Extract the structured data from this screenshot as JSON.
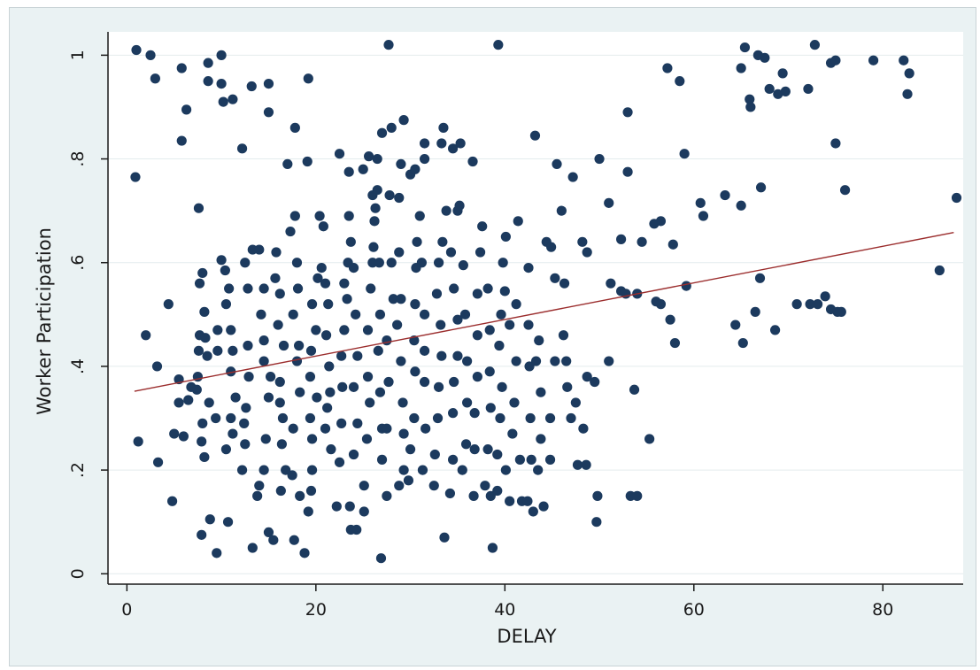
{
  "chart_data": {
    "type": "scatter",
    "xlabel": "DELAY",
    "ylabel": "Worker Participation",
    "xlim": [
      -2,
      88.5
    ],
    "ylim": [
      -0.02,
      1.045
    ],
    "xticks": [
      0,
      20,
      40,
      60,
      80
    ],
    "xtick_labels": [
      "0",
      "20",
      "40",
      "60",
      "80"
    ],
    "yticks": [
      0,
      0.2,
      0.4,
      0.6,
      0.8,
      1
    ],
    "ytick_labels": [
      "0",
      ".2",
      ".4",
      ".6",
      ".8",
      "1"
    ],
    "grid": true,
    "colors": {
      "background": "#eaf2f3",
      "plot_area": "#ffffff",
      "gridline": "#e4eced",
      "marker": "#1c3a5e",
      "fit_line": "#9b2d2d",
      "axis": "#1a1a1a"
    },
    "fit_line": {
      "x": [
        0.8,
        87.5
      ],
      "y": [
        0.352,
        0.658
      ]
    },
    "points": [
      [
        1,
        1.01
      ],
      [
        2.5,
        1.0
      ],
      [
        3,
        0.955
      ],
      [
        5.8,
        0.975
      ],
      [
        6.3,
        0.895
      ],
      [
        5.8,
        0.835
      ],
      [
        8.6,
        0.985
      ],
      [
        10,
        1.0
      ],
      [
        8.6,
        0.95
      ],
      [
        10,
        0.945
      ],
      [
        10.2,
        0.91
      ],
      [
        11.2,
        0.915
      ],
      [
        13.2,
        0.94
      ],
      [
        15,
        0.945
      ],
      [
        15,
        0.89
      ],
      [
        12.2,
        0.82
      ],
      [
        17.8,
        0.86
      ],
      [
        19.2,
        0.955
      ],
      [
        19.1,
        0.795
      ],
      [
        17,
        0.79
      ],
      [
        27.7,
        1.02
      ],
      [
        39.3,
        1.02
      ],
      [
        0.9,
        0.765
      ],
      [
        7.6,
        0.705
      ],
      [
        22.5,
        0.81
      ],
      [
        23.5,
        0.775
      ],
      [
        25.6,
        0.805
      ],
      [
        26.5,
        0.8
      ],
      [
        25,
        0.78
      ],
      [
        27,
        0.85
      ],
      [
        28,
        0.86
      ],
      [
        29.3,
        0.875
      ],
      [
        29,
        0.79
      ],
      [
        30,
        0.77
      ],
      [
        30.5,
        0.78
      ],
      [
        31.5,
        0.8
      ],
      [
        31.5,
        0.83
      ],
      [
        33.5,
        0.86
      ],
      [
        33.3,
        0.83
      ],
      [
        34.5,
        0.82
      ],
      [
        35.3,
        0.83
      ],
      [
        36.6,
        0.795
      ],
      [
        26.5,
        0.74
      ],
      [
        27.8,
        0.73
      ],
      [
        26,
        0.73
      ],
      [
        26.3,
        0.705
      ],
      [
        28.8,
        0.725
      ],
      [
        43.2,
        0.845
      ],
      [
        45.5,
        0.79
      ],
      [
        47.2,
        0.765
      ],
      [
        46,
        0.7
      ],
      [
        51,
        0.715
      ],
      [
        53,
        0.775
      ],
      [
        53,
        0.89
      ],
      [
        57.2,
        0.975
      ],
      [
        58.5,
        0.95
      ],
      [
        59,
        0.81
      ],
      [
        60.7,
        0.715
      ],
      [
        61,
        0.69
      ],
      [
        63.3,
        0.73
      ],
      [
        65,
        0.71
      ],
      [
        65,
        0.975
      ],
      [
        65.4,
        1.015
      ],
      [
        65.9,
        0.915
      ],
      [
        66,
        0.9
      ],
      [
        66.8,
        1.0
      ],
      [
        67.5,
        0.995
      ],
      [
        68,
        0.935
      ],
      [
        68.9,
        0.925
      ],
      [
        69.4,
        0.965
      ],
      [
        69.7,
        0.93
      ],
      [
        72.1,
        0.935
      ],
      [
        72.8,
        1.02
      ],
      [
        74.5,
        0.985
      ],
      [
        75,
        0.99
      ],
      [
        75,
        0.83
      ],
      [
        76,
        0.74
      ],
      [
        67.1,
        0.745
      ],
      [
        79,
        0.99
      ],
      [
        82.2,
        0.99
      ],
      [
        82.8,
        0.965
      ],
      [
        82.6,
        0.925
      ],
      [
        87.8,
        0.725
      ],
      [
        55.8,
        0.675
      ],
      [
        56.5,
        0.68
      ],
      [
        57.8,
        0.635
      ],
      [
        54.5,
        0.64
      ],
      [
        52.3,
        0.645
      ],
      [
        48.2,
        0.64
      ],
      [
        48.7,
        0.62
      ],
      [
        44.4,
        0.64
      ],
      [
        44.9,
        0.63
      ],
      [
        50,
        0.8
      ],
      [
        56,
        0.525
      ],
      [
        56.5,
        0.52
      ],
      [
        57.5,
        0.49
      ],
      [
        58,
        0.445
      ],
      [
        59.2,
        0.555
      ],
      [
        52.3,
        0.545
      ],
      [
        54,
        0.54
      ],
      [
        55.3,
        0.26
      ],
      [
        53.3,
        0.15
      ],
      [
        54,
        0.15
      ],
      [
        53.7,
        0.355
      ],
      [
        64.4,
        0.48
      ],
      [
        65.2,
        0.445
      ],
      [
        66.5,
        0.505
      ],
      [
        67,
        0.57
      ],
      [
        68.6,
        0.47
      ],
      [
        70.9,
        0.52
      ],
      [
        72.3,
        0.52
      ],
      [
        73.1,
        0.52
      ],
      [
        73.9,
        0.535
      ],
      [
        74.5,
        0.51
      ],
      [
        75.2,
        0.505
      ],
      [
        75.6,
        0.505
      ],
      [
        86,
        0.585
      ],
      [
        1.2,
        0.255
      ],
      [
        2,
        0.46
      ],
      [
        3.2,
        0.4
      ],
      [
        3.3,
        0.215
      ],
      [
        4.4,
        0.52
      ],
      [
        4.8,
        0.14
      ],
      [
        5.5,
        0.375
      ],
      [
        5,
        0.27
      ],
      [
        6,
        0.265
      ],
      [
        5.5,
        0.33
      ],
      [
        6.5,
        0.335
      ],
      [
        6.8,
        0.36
      ],
      [
        7.5,
        0.38
      ],
      [
        7.7,
        0.46
      ],
      [
        7.6,
        0.43
      ],
      [
        7.7,
        0.56
      ],
      [
        8,
        0.58
      ],
      [
        8.2,
        0.505
      ],
      [
        8.3,
        0.455
      ],
      [
        8.5,
        0.42
      ],
      [
        8.7,
        0.33
      ],
      [
        8,
        0.29
      ],
      [
        7.9,
        0.255
      ],
      [
        8.2,
        0.225
      ],
      [
        7.4,
        0.355
      ],
      [
        8.8,
        0.105
      ],
      [
        9.5,
        0.04
      ],
      [
        7.9,
        0.075
      ],
      [
        9.4,
        0.3
      ],
      [
        9.6,
        0.43
      ],
      [
        9.6,
        0.47
      ],
      [
        10,
        0.605
      ],
      [
        10.4,
        0.585
      ],
      [
        10.8,
        0.55
      ],
      [
        10.5,
        0.52
      ],
      [
        11,
        0.47
      ],
      [
        11.2,
        0.43
      ],
      [
        11,
        0.39
      ],
      [
        11.5,
        0.34
      ],
      [
        11,
        0.3
      ],
      [
        11.2,
        0.27
      ],
      [
        10.5,
        0.24
      ],
      [
        10.7,
        0.1
      ],
      [
        12.2,
        0.2
      ],
      [
        12.5,
        0.25
      ],
      [
        12.4,
        0.29
      ],
      [
        12.6,
        0.32
      ],
      [
        12.9,
        0.38
      ],
      [
        12.8,
        0.44
      ],
      [
        12.8,
        0.55
      ],
      [
        12.5,
        0.6
      ],
      [
        13.3,
        0.625
      ],
      [
        14,
        0.625
      ],
      [
        14.5,
        0.55
      ],
      [
        14.2,
        0.5
      ],
      [
        14.5,
        0.45
      ],
      [
        14.5,
        0.41
      ],
      [
        15.2,
        0.38
      ],
      [
        15,
        0.34
      ],
      [
        14.7,
        0.26
      ],
      [
        14.5,
        0.2
      ],
      [
        14,
        0.17
      ],
      [
        13.8,
        0.15
      ],
      [
        13.3,
        0.05
      ],
      [
        15,
        0.08
      ],
      [
        15.5,
        0.065
      ],
      [
        16.3,
        0.16
      ],
      [
        16.8,
        0.2
      ],
      [
        16.4,
        0.25
      ],
      [
        16.5,
        0.3
      ],
      [
        16.2,
        0.33
      ],
      [
        16.2,
        0.37
      ],
      [
        16.6,
        0.44
      ],
      [
        16,
        0.48
      ],
      [
        16.2,
        0.54
      ],
      [
        15.8,
        0.62
      ],
      [
        15.7,
        0.57
      ],
      [
        17.3,
        0.66
      ],
      [
        17.8,
        0.69
      ],
      [
        18,
        0.6
      ],
      [
        18.1,
        0.55
      ],
      [
        17.6,
        0.5
      ],
      [
        18.2,
        0.44
      ],
      [
        18,
        0.41
      ],
      [
        18.3,
        0.35
      ],
      [
        17.6,
        0.28
      ],
      [
        17.5,
        0.19
      ],
      [
        18.3,
        0.15
      ],
      [
        18.8,
        0.04
      ],
      [
        17.7,
        0.065
      ],
      [
        19.2,
        0.12
      ],
      [
        19.5,
        0.16
      ],
      [
        19.6,
        0.2
      ],
      [
        19.6,
        0.26
      ],
      [
        19.4,
        0.3
      ],
      [
        20.1,
        0.34
      ],
      [
        19.4,
        0.38
      ],
      [
        19.5,
        0.43
      ],
      [
        20,
        0.47
      ],
      [
        19.6,
        0.52
      ],
      [
        20.2,
        0.57
      ],
      [
        20.6,
        0.59
      ],
      [
        20.4,
        0.69
      ],
      [
        20.8,
        0.67
      ],
      [
        21,
        0.56
      ],
      [
        21.3,
        0.52
      ],
      [
        21.1,
        0.46
      ],
      [
        21.4,
        0.4
      ],
      [
        21.5,
        0.35
      ],
      [
        21.2,
        0.32
      ],
      [
        21,
        0.28
      ],
      [
        21.6,
        0.24
      ],
      [
        22.2,
        0.13
      ],
      [
        22.5,
        0.215
      ],
      [
        22.7,
        0.29
      ],
      [
        22.8,
        0.36
      ],
      [
        22.7,
        0.42
      ],
      [
        23,
        0.47
      ],
      [
        23.3,
        0.53
      ],
      [
        23,
        0.56
      ],
      [
        23.4,
        0.6
      ],
      [
        23.7,
        0.64
      ],
      [
        23.5,
        0.69
      ],
      [
        24,
        0.59
      ],
      [
        24.2,
        0.5
      ],
      [
        24.4,
        0.42
      ],
      [
        24,
        0.36
      ],
      [
        24.4,
        0.29
      ],
      [
        24,
        0.23
      ],
      [
        23.6,
        0.13
      ],
      [
        23.7,
        0.085
      ],
      [
        24.3,
        0.085
      ],
      [
        25.1,
        0.12
      ],
      [
        25.1,
        0.17
      ],
      [
        25.4,
        0.26
      ],
      [
        25.7,
        0.33
      ],
      [
        25.5,
        0.38
      ],
      [
        25.5,
        0.47
      ],
      [
        25.8,
        0.55
      ],
      [
        26,
        0.6
      ],
      [
        26.1,
        0.63
      ],
      [
        26.2,
        0.68
      ],
      [
        26.7,
        0.6
      ],
      [
        26.8,
        0.5
      ],
      [
        26.6,
        0.43
      ],
      [
        26.8,
        0.35
      ],
      [
        27,
        0.28
      ],
      [
        27,
        0.22
      ],
      [
        26.9,
        0.03
      ],
      [
        27.5,
        0.15
      ],
      [
        27.5,
        0.28
      ],
      [
        27.7,
        0.37
      ],
      [
        27.5,
        0.45
      ],
      [
        28.2,
        0.53
      ],
      [
        28,
        0.6
      ],
      [
        28.8,
        0.62
      ],
      [
        29,
        0.53
      ],
      [
        28.6,
        0.48
      ],
      [
        29,
        0.41
      ],
      [
        29.2,
        0.33
      ],
      [
        29.3,
        0.27
      ],
      [
        29.3,
        0.2
      ],
      [
        28.8,
        0.17
      ],
      [
        29.8,
        0.18
      ],
      [
        30,
        0.24
      ],
      [
        30.4,
        0.3
      ],
      [
        30.5,
        0.39
      ],
      [
        30.4,
        0.45
      ],
      [
        30.5,
        0.52
      ],
      [
        30.6,
        0.59
      ],
      [
        30.7,
        0.64
      ],
      [
        31,
        0.69
      ],
      [
        31.2,
        0.6
      ],
      [
        31.5,
        0.5
      ],
      [
        31.5,
        0.43
      ],
      [
        31.5,
        0.37
      ],
      [
        31.6,
        0.28
      ],
      [
        31.3,
        0.2
      ],
      [
        32.5,
        0.17
      ],
      [
        32.6,
        0.23
      ],
      [
        32.9,
        0.3
      ],
      [
        33,
        0.36
      ],
      [
        33.3,
        0.42
      ],
      [
        33.2,
        0.48
      ],
      [
        32.8,
        0.54
      ],
      [
        33,
        0.6
      ],
      [
        33.4,
        0.64
      ],
      [
        33.8,
        0.7
      ],
      [
        33.6,
        0.07
      ],
      [
        34.2,
        0.155
      ],
      [
        34.5,
        0.22
      ],
      [
        34.5,
        0.31
      ],
      [
        34.6,
        0.37
      ],
      [
        35,
        0.42
      ],
      [
        35,
        0.49
      ],
      [
        34.6,
        0.55
      ],
      [
        34.3,
        0.62
      ],
      [
        35,
        0.7
      ],
      [
        35.2,
        0.71
      ],
      [
        35.6,
        0.595
      ],
      [
        35.8,
        0.5
      ],
      [
        36,
        0.41
      ],
      [
        36,
        0.33
      ],
      [
        35.9,
        0.25
      ],
      [
        35.5,
        0.2
      ],
      [
        36.7,
        0.15
      ],
      [
        36.8,
        0.24
      ],
      [
        36.8,
        0.31
      ],
      [
        37.1,
        0.38
      ],
      [
        37.1,
        0.46
      ],
      [
        37.1,
        0.54
      ],
      [
        37.4,
        0.62
      ],
      [
        37.6,
        0.67
      ],
      [
        38.2,
        0.55
      ],
      [
        38.4,
        0.47
      ],
      [
        38.4,
        0.39
      ],
      [
        38.5,
        0.32
      ],
      [
        38.2,
        0.24
      ],
      [
        37.9,
        0.17
      ],
      [
        38.5,
        0.15
      ],
      [
        38.7,
        0.05
      ],
      [
        39.2,
        0.16
      ],
      [
        39.2,
        0.23
      ],
      [
        39.5,
        0.3
      ],
      [
        39.7,
        0.36
      ],
      [
        39.4,
        0.44
      ],
      [
        39.6,
        0.5
      ],
      [
        39.8,
        0.6
      ],
      [
        40.1,
        0.65
      ],
      [
        40,
        0.545
      ],
      [
        40.1,
        0.2
      ],
      [
        40.5,
        0.14
      ],
      [
        40.8,
        0.27
      ],
      [
        41,
        0.33
      ],
      [
        41.2,
        0.41
      ],
      [
        40.5,
        0.48
      ],
      [
        41.2,
        0.52
      ],
      [
        41.4,
        0.68
      ],
      [
        41.6,
        0.22
      ],
      [
        41.8,
        0.14
      ],
      [
        42.4,
        0.14
      ],
      [
        42.8,
        0.22
      ],
      [
        42.7,
        0.3
      ],
      [
        42.6,
        0.4
      ],
      [
        42.5,
        0.48
      ],
      [
        42.5,
        0.59
      ],
      [
        43,
        0.12
      ],
      [
        43.5,
        0.2
      ],
      [
        43.8,
        0.26
      ],
      [
        43.8,
        0.35
      ],
      [
        43.6,
        0.45
      ],
      [
        43.3,
        0.41
      ],
      [
        44.1,
        0.13
      ],
      [
        44.8,
        0.22
      ],
      [
        44.8,
        0.3
      ],
      [
        45.3,
        0.41
      ],
      [
        45.3,
        0.57
      ],
      [
        46.3,
        0.56
      ],
      [
        46.2,
        0.46
      ],
      [
        46.5,
        0.41
      ],
      [
        46.6,
        0.36
      ],
      [
        47,
        0.3
      ],
      [
        47.5,
        0.33
      ],
      [
        48.3,
        0.28
      ],
      [
        47.7,
        0.21
      ],
      [
        48.7,
        0.38
      ],
      [
        48.6,
        0.21
      ],
      [
        49.5,
        0.37
      ],
      [
        49.7,
        0.1
      ],
      [
        49.8,
        0.15
      ],
      [
        51,
        0.41
      ],
      [
        51.2,
        0.56
      ],
      [
        52.8,
        0.54
      ]
    ]
  }
}
